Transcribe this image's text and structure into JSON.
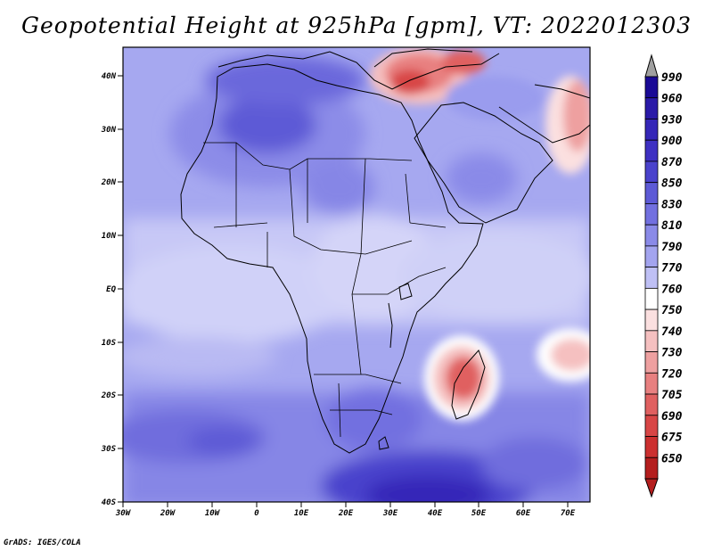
{
  "title": "Geopotential Height at 925hPa [gpm], VT: 2022012303",
  "credit": "GrADS: IGES/COLA",
  "axes": {
    "lat_labels": [
      "40N",
      "30N",
      "20N",
      "10N",
      "EQ",
      "10S",
      "20S",
      "30S",
      "40S"
    ],
    "lon_labels": [
      "30W",
      "20W",
      "10W",
      "0",
      "10E",
      "20E",
      "30E",
      "40E",
      "50E",
      "60E",
      "70E"
    ]
  },
  "map": {
    "variable": "Geopotential Height",
    "level": "925hPa",
    "units": "gpm",
    "valid_time": "2022012303",
    "lon_range": [
      -30,
      75
    ],
    "lat_range": [
      -40,
      44
    ],
    "features": [
      {
        "name": "Turkey / Middle East trough",
        "value_range": "720-750",
        "lon": 37,
        "lat": 38
      },
      {
        "name": "Madagascar low",
        "value_range": "705-750",
        "lon": 47,
        "lat": -16
      },
      {
        "name": "Indian Ocean low",
        "value_range": "750-760",
        "lon": 68,
        "lat": -12
      },
      {
        "name": "Iran / Pakistan low",
        "value_range": "720-760",
        "lon": 73,
        "lat": 28
      },
      {
        "name": "Southern Ocean high",
        "value_range": "870-900",
        "lon": 40,
        "lat": -37
      },
      {
        "name": "Sahara high",
        "value_range": "850-870",
        "lon": 2,
        "lat": 30
      },
      {
        "name": "South Atlantic high",
        "value_range": "830-850",
        "lon": -12,
        "lat": -30
      }
    ]
  },
  "colorbar": {
    "levels": [
      "990",
      "960",
      "930",
      "900",
      "870",
      "850",
      "830",
      "810",
      "790",
      "770",
      "760",
      "750",
      "740",
      "730",
      "720",
      "705",
      "690",
      "675",
      "650"
    ],
    "colors": [
      "#1a0a96",
      "#2a1aa8",
      "#3527b8",
      "#3e30c2",
      "#4a42cc",
      "#5d5ad6",
      "#7270e0",
      "#8a8ae8",
      "#a3a4ef",
      "#bfc0f5",
      "#ffffff",
      "#fbe0e0",
      "#f5c0c0",
      "#eea0a0",
      "#e88080",
      "#e06060",
      "#d84646",
      "#cc3030",
      "#b41e1e"
    ],
    "over_color": "#a0a0a0",
    "under_color": "#b41e1e"
  }
}
